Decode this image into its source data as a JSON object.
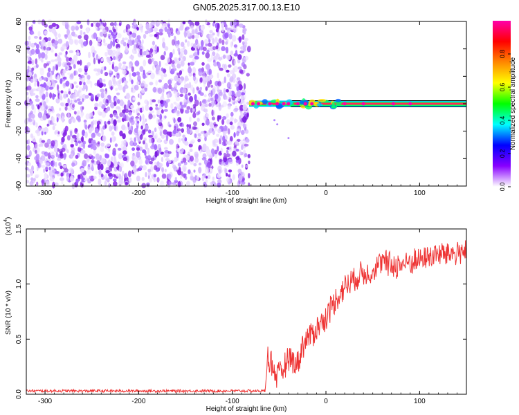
{
  "figure_title": "GN05.2025.317.00.13.E10",
  "chart_data": [
    {
      "type": "heatmap",
      "title": "GN05.2025.317.00.13.E10",
      "xlabel": "Height of straight line (km)",
      "ylabel": "Frequency (Hz)",
      "xlim": [
        -320,
        150
      ],
      "ylim": [
        -60,
        60
      ],
      "xticks": [
        -300,
        -200,
        -100,
        0,
        100
      ],
      "xtick_labels": [
        "-300",
        "-200",
        "-100",
        "0",
        "100"
      ],
      "yticks": [
        -60,
        -40,
        -20,
        0,
        20,
        40,
        60
      ],
      "ytick_labels": [
        "-60",
        "-40",
        "-20",
        "0",
        "20",
        "40",
        "60"
      ],
      "noise_region_x": [
        -320,
        -82
      ],
      "carrier_start_x": -82,
      "carrier_frequency_hz": 0,
      "colorbar": {
        "label": "Normalized spectral amplitude",
        "range": [
          0,
          1
        ],
        "ticks": [
          0.0,
          0.2,
          0.4,
          0.6,
          0.8
        ],
        "tick_labels": [
          "0.0",
          "0.2",
          "0.4",
          "0.6",
          "0.8"
        ],
        "colors": [
          "#ffffff",
          "#8800ff",
          "#0000ff",
          "#00ffff",
          "#00ff00",
          "#ffff00",
          "#ff8800",
          "#ff0000",
          "#ff00aa"
        ]
      },
      "grid": false
    },
    {
      "type": "line",
      "xlabel": "Height of straight line (km)",
      "ylabel": "SNR (10 * v/v)",
      "y_multiplier_label": "(x10",
      "y_multiplier_exp": "4",
      "xlim": [
        -320,
        150
      ],
      "ylim": [
        0,
        1.5
      ],
      "xticks": [
        -300,
        -200,
        -100,
        0,
        100
      ],
      "xtick_labels": [
        "-300",
        "-200",
        "-100",
        "0",
        "100"
      ],
      "yticks": [
        0.0,
        0.5,
        1.0,
        1.5
      ],
      "ytick_labels": [
        "0.0",
        "0.5",
        "1.0",
        "1.5"
      ],
      "color": "#ee3333",
      "grid": false,
      "series": [
        {
          "x": [
            -320,
            -250,
            -150,
            -100,
            -65,
            -62,
            -58,
            -55,
            -50,
            -45,
            -40,
            -35,
            -30,
            -25,
            -20,
            -15,
            -10,
            -5,
            0,
            5,
            10,
            15,
            20,
            25,
            30,
            40,
            50,
            60,
            70,
            80,
            90,
            100,
            110,
            120,
            130,
            140,
            150
          ],
          "values": [
            0.03,
            0.03,
            0.03,
            0.03,
            0.03,
            0.35,
            0.28,
            0.2,
            0.15,
            0.25,
            0.35,
            0.3,
            0.28,
            0.45,
            0.5,
            0.55,
            0.6,
            0.65,
            0.7,
            0.78,
            0.85,
            0.92,
            0.98,
            1.0,
            1.05,
            1.1,
            1.12,
            1.2,
            1.17,
            1.18,
            1.2,
            1.22,
            1.25,
            1.27,
            1.28,
            1.28,
            1.32
          ]
        }
      ]
    }
  ]
}
